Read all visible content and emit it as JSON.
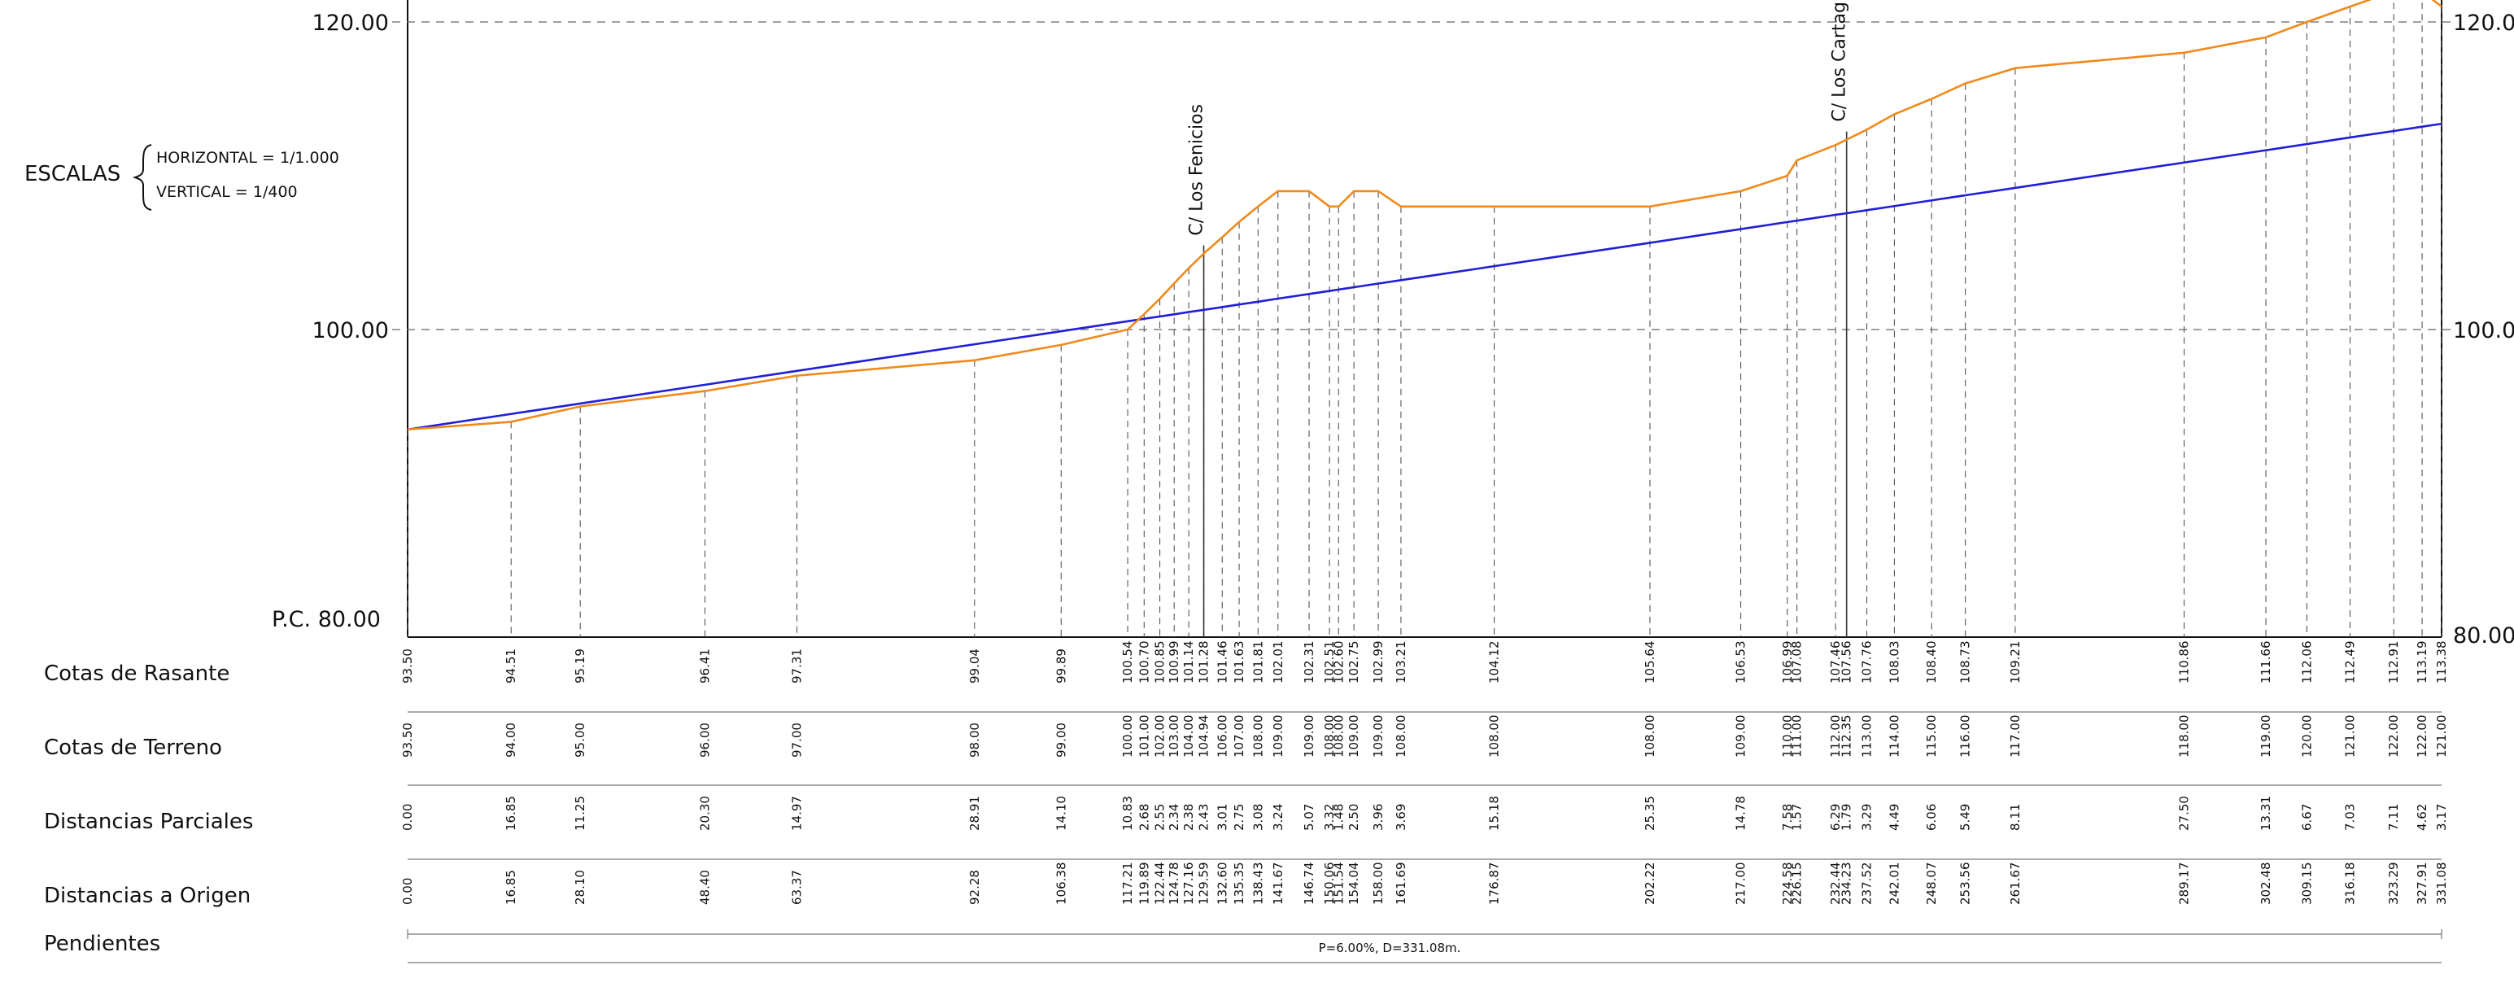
{
  "scales": {
    "title": "ESCALAS",
    "horizontal": "HORIZONTAL = 1/1.000",
    "vertical": "VERTICAL      = 1/400"
  },
  "axis_labels": {
    "top_left": "120.00",
    "mid_left": "100.00",
    "bottom_left": "P.C. 80.00",
    "top_right": "120.00",
    "mid_right": "100.00",
    "bottom_right": "80.00"
  },
  "streets": [
    {
      "name": "C/ Los Fenicios",
      "at": 129.59
    },
    {
      "name": "C/ Los Cartagin",
      "at": 234.23
    }
  ],
  "row_labels": {
    "rasante": "Cotas de Rasante",
    "terreno": "Cotas de Terreno",
    "parciales": "Distancias Parciales",
    "origen": "Distancias a Origen",
    "pendientes": "Pendientes"
  },
  "slope_text": "P=6.00%, D=331.08m.",
  "chart_data": {
    "type": "line",
    "xlabel": "",
    "ylabel": "",
    "xlim": [
      0,
      331.08
    ],
    "ylim": [
      80,
      120
    ],
    "grid_lines_y": [
      100,
      120
    ],
    "colors": {
      "rasante": "#1f1fd6",
      "terreno": "#f08a1c",
      "grid": "#666666"
    },
    "stations": [
      {
        "o": "0.00",
        "p": "0.00",
        "r": "93.50",
        "t": "93.50"
      },
      {
        "o": "16.85",
        "p": "16.85",
        "r": "94.51",
        "t": "94.00"
      },
      {
        "o": "28.10",
        "p": "11.25",
        "r": "95.19",
        "t": "95.00"
      },
      {
        "o": "48.40",
        "p": "20.30",
        "r": "96.41",
        "t": "96.00"
      },
      {
        "o": "63.37",
        "p": "14.97",
        "r": "97.31",
        "t": "97.00"
      },
      {
        "o": "92.28",
        "p": "28.91",
        "r": "99.04",
        "t": "98.00"
      },
      {
        "o": "106.38",
        "p": "14.10",
        "r": "99.89",
        "t": "99.00"
      },
      {
        "o": "117.21",
        "p": "10.83",
        "r": "100.54",
        "t": "100.00"
      },
      {
        "o": "119.89",
        "p": "2.68",
        "r": "100.70",
        "t": "101.00"
      },
      {
        "o": "122.44",
        "p": "2.55",
        "r": "100.85",
        "t": "102.00"
      },
      {
        "o": "124.78",
        "p": "2.34",
        "r": "100.99",
        "t": "103.00"
      },
      {
        "o": "127.16",
        "p": "2.38",
        "r": "101.14",
        "t": "104.00"
      },
      {
        "o": "129.59",
        "p": "2.43",
        "r": "101.28",
        "t": "104.94"
      },
      {
        "o": "132.60",
        "p": "3.01",
        "r": "101.46",
        "t": "106.00"
      },
      {
        "o": "135.35",
        "p": "2.75",
        "r": "101.63",
        "t": "107.00"
      },
      {
        "o": "138.43",
        "p": "3.08",
        "r": "101.81",
        "t": "108.00"
      },
      {
        "o": "141.67",
        "p": "3.24",
        "r": "102.01",
        "t": "109.00"
      },
      {
        "o": "146.74",
        "p": "5.07",
        "r": "102.31",
        "t": "109.00"
      },
      {
        "o": "150.06",
        "p": "3.32",
        "r": "102.51",
        "t": "108.00"
      },
      {
        "o": "151.54",
        "p": "1.48",
        "r": "102.60",
        "t": "108.00"
      },
      {
        "o": "154.04",
        "p": "2.50",
        "r": "102.75",
        "t": "109.00"
      },
      {
        "o": "158.00",
        "p": "3.96",
        "r": "102.99",
        "t": "109.00"
      },
      {
        "o": "161.69",
        "p": "3.69",
        "r": "103.21",
        "t": "108.00"
      },
      {
        "o": "176.87",
        "p": "15.18",
        "r": "104.12",
        "t": "108.00"
      },
      {
        "o": "202.22",
        "p": "25.35",
        "r": "105.64",
        "t": "108.00"
      },
      {
        "o": "217.00",
        "p": "14.78",
        "r": "106.53",
        "t": "109.00"
      },
      {
        "o": "224.58",
        "p": "7.58",
        "r": "106.99",
        "t": "110.00"
      },
      {
        "o": "226.15",
        "p": "1.57",
        "r": "107.08",
        "t": "111.00"
      },
      {
        "o": "232.44",
        "p": "6.29",
        "r": "107.46",
        "t": "112.00"
      },
      {
        "o": "234.23",
        "p": "1.79",
        "r": "107.56",
        "t": "112.35"
      },
      {
        "o": "237.52",
        "p": "3.29",
        "r": "107.76",
        "t": "113.00"
      },
      {
        "o": "242.01",
        "p": "4.49",
        "r": "108.03",
        "t": "114.00"
      },
      {
        "o": "248.07",
        "p": "6.06",
        "r": "108.40",
        "t": "115.00"
      },
      {
        "o": "253.56",
        "p": "5.49",
        "r": "108.73",
        "t": "116.00"
      },
      {
        "o": "261.67",
        "p": "8.11",
        "r": "109.21",
        "t": "117.00"
      },
      {
        "o": "289.17",
        "p": "27.50",
        "r": "110.86",
        "t": "118.00"
      },
      {
        "o": "302.48",
        "p": "13.31",
        "r": "111.66",
        "t": "119.00"
      },
      {
        "o": "309.15",
        "p": "6.67",
        "r": "112.06",
        "t": "120.00"
      },
      {
        "o": "316.18",
        "p": "7.03",
        "r": "112.49",
        "t": "121.00"
      },
      {
        "o": "323.29",
        "p": "7.11",
        "r": "112.91",
        "t": "122.00"
      },
      {
        "o": "327.91",
        "p": "4.62",
        "r": "113.19",
        "t": "122.00"
      },
      {
        "o": "331.08",
        "p": "3.17",
        "r": "113.38",
        "t": "121.00"
      }
    ]
  }
}
